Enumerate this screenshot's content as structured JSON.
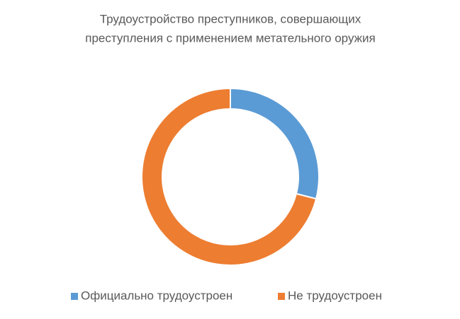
{
  "chart_data": {
    "type": "donut",
    "title": [
      "Трудоустройство преступников, совершающих",
      "преступления с применением метательного оружия"
    ],
    "categories": [
      "Официально трудоустроен",
      "Не трудоустроен"
    ],
    "values": [
      29,
      71
    ],
    "colors": [
      "#5b9bd5",
      "#ed7d31"
    ],
    "legend": "bottom"
  }
}
